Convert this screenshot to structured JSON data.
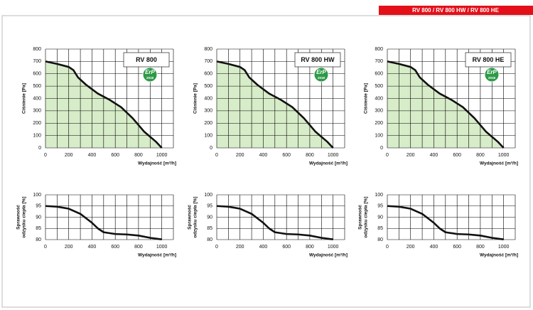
{
  "banner": "RV 800 / RV 800 HW / RV 800 HE",
  "chart_data": [
    {
      "type": "area",
      "title": "RV 800",
      "badge": [
        "ErP",
        "2018"
      ],
      "ylabel": [
        "Ciśnienie [Pa]"
      ],
      "xlabel": "Wydajność [m³/h]",
      "color": "#d7ecc8",
      "x": [
        0,
        100,
        200,
        240,
        280,
        350,
        450,
        550,
        650,
        750,
        850,
        950,
        1000
      ],
      "values": [
        700,
        680,
        655,
        630,
        570,
        510,
        440,
        390,
        330,
        240,
        130,
        50,
        0
      ],
      "xlim": [
        0,
        1100
      ],
      "ylim": [
        0,
        800
      ],
      "xticks": [
        0,
        200,
        400,
        600,
        800,
        1000
      ],
      "yticks": [
        0,
        100,
        200,
        300,
        400,
        500,
        600,
        700,
        800
      ],
      "xgrid": [
        100,
        300,
        500,
        700,
        900,
        1100
      ]
    },
    {
      "type": "area",
      "title": "RV 800 HW",
      "badge": [
        "ErP",
        "2018"
      ],
      "ylabel": [
        "Ciśnienie [Pa]"
      ],
      "xlabel": "Wydajność [m³/h]",
      "color": "#d7ecc8",
      "x": [
        0,
        100,
        200,
        240,
        280,
        350,
        450,
        550,
        650,
        750,
        850,
        950,
        1000
      ],
      "values": [
        700,
        680,
        655,
        630,
        570,
        510,
        440,
        390,
        330,
        240,
        130,
        50,
        0
      ],
      "xlim": [
        0,
        1100
      ],
      "ylim": [
        0,
        800
      ],
      "xticks": [
        0,
        200,
        400,
        600,
        800,
        1000
      ],
      "yticks": [
        0,
        100,
        200,
        300,
        400,
        500,
        600,
        700,
        800
      ],
      "xgrid": [
        100,
        300,
        500,
        700,
        900,
        1100
      ]
    },
    {
      "type": "area",
      "title": "RV 800 HE",
      "badge": [
        "ErP",
        "2018"
      ],
      "ylabel": [
        "Ciśnienie [Pa]"
      ],
      "xlabel": "Wydajność [m³/h]",
      "color": "#d7ecc8",
      "x": [
        0,
        100,
        200,
        240,
        280,
        350,
        450,
        550,
        650,
        750,
        850,
        950,
        1000
      ],
      "values": [
        700,
        680,
        655,
        630,
        570,
        510,
        440,
        390,
        330,
        240,
        130,
        50,
        0
      ],
      "xlim": [
        0,
        1100
      ],
      "ylim": [
        0,
        800
      ],
      "xticks": [
        0,
        200,
        400,
        600,
        800,
        1000
      ],
      "yticks": [
        0,
        100,
        200,
        300,
        400,
        500,
        600,
        700,
        800
      ],
      "xgrid": [
        100,
        300,
        500,
        700,
        900,
        1100
      ]
    },
    {
      "type": "line",
      "ylabel": [
        "Sprawność",
        "odzysku ciepła [%]"
      ],
      "xlabel": "Wydajność [m³/h]",
      "x": [
        0,
        100,
        200,
        300,
        400,
        450,
        500,
        600,
        700,
        800,
        900,
        1000
      ],
      "values": [
        95,
        94.7,
        93.8,
        91.5,
        87.5,
        85,
        83.3,
        82.5,
        82.3,
        81.8,
        80.8,
        80.1
      ],
      "xlim": [
        0,
        1100
      ],
      "ylim": [
        80,
        100
      ],
      "xticks": [
        0,
        200,
        400,
        600,
        800,
        1000
      ],
      "yticks": [
        80,
        85,
        90,
        95,
        100
      ],
      "xgrid": [
        100,
        300,
        500,
        700,
        900,
        1100
      ]
    },
    {
      "type": "line",
      "ylabel": [
        "Sprawność",
        "odzysku ciepła [%]"
      ],
      "xlabel": "Wydajność [m³/h]",
      "x": [
        0,
        100,
        200,
        300,
        400,
        450,
        500,
        600,
        700,
        800,
        900,
        1000
      ],
      "values": [
        95,
        94.7,
        93.8,
        91.5,
        87.5,
        85,
        83.3,
        82.5,
        82.3,
        81.8,
        80.8,
        80.1
      ],
      "xlim": [
        0,
        1100
      ],
      "ylim": [
        80,
        100
      ],
      "xticks": [
        0,
        200,
        400,
        600,
        800,
        1000
      ],
      "yticks": [
        80,
        85,
        90,
        95,
        100
      ],
      "xgrid": [
        100,
        300,
        500,
        700,
        900,
        1100
      ]
    },
    {
      "type": "line",
      "ylabel": [
        "Sprawność",
        "odzysku ciepła [%]"
      ],
      "xlabel": "Wydajność [m³/h]",
      "x": [
        0,
        100,
        200,
        300,
        400,
        450,
        500,
        600,
        700,
        800,
        900,
        1000
      ],
      "values": [
        95,
        94.7,
        93.8,
        91.5,
        87.5,
        85,
        83.3,
        82.5,
        82.3,
        81.8,
        80.8,
        80.1
      ],
      "xlim": [
        0,
        1100
      ],
      "ylim": [
        80,
        100
      ],
      "xticks": [
        0,
        200,
        400,
        600,
        800,
        1000
      ],
      "yticks": [
        80,
        85,
        90,
        95,
        100
      ],
      "xgrid": [
        100,
        300,
        500,
        700,
        900,
        1100
      ]
    }
  ]
}
